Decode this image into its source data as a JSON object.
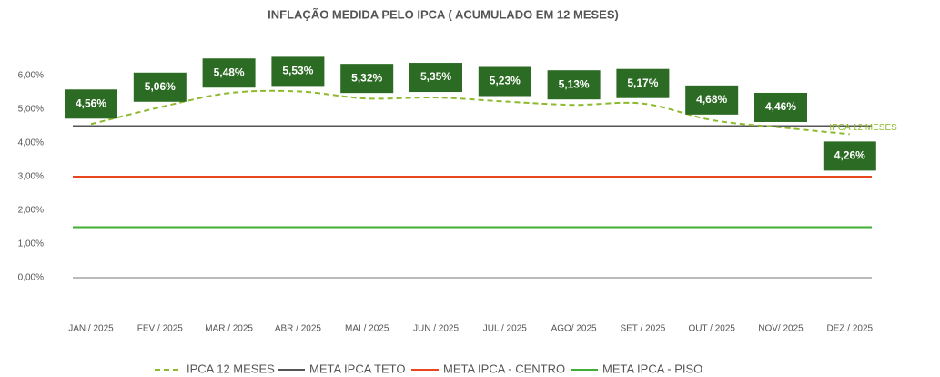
{
  "chart_data": {
    "type": "line",
    "title": "INFLAÇÃO MEDIDA PELO IPCA ( ACUMULADO EM 12 MESES)",
    "categories": [
      "JAN / 2025",
      "FEV / 2025",
      "MAR / 2025",
      "ABR / 2025",
      "MAI / 2025",
      "JUN / 2025",
      "JUL / 2025",
      "AGO/ 2025",
      "SET / 2025",
      "OUT / 2025",
      "NOV/ 2025",
      "DEZ / 2025"
    ],
    "series": [
      {
        "name": "IPCA 12 MESES",
        "color": "#8dba2c",
        "dashed": true,
        "values": [
          4.56,
          5.06,
          5.48,
          5.53,
          5.32,
          5.35,
          5.23,
          5.13,
          5.17,
          4.68,
          4.46,
          4.26
        ],
        "value_labels": [
          "4,56%",
          "5,06%",
          "5,48%",
          "5,53%",
          "5,32%",
          "5,35%",
          "5,23%",
          "5,13%",
          "5,17%",
          "4,68%",
          "4,46%",
          "4,26%"
        ]
      },
      {
        "name": "META IPCA TETO",
        "color": "#555555",
        "values": [
          4.5,
          4.5,
          4.5,
          4.5,
          4.5,
          4.5,
          4.5,
          4.5,
          4.5,
          4.5,
          4.5,
          4.5
        ]
      },
      {
        "name": "META IPCA - CENTRO",
        "color": "#e8461e",
        "values": [
          3,
          3,
          3,
          3,
          3,
          3,
          3,
          3,
          3,
          3,
          3,
          3
        ]
      },
      {
        "name": "META IPCA - PISO",
        "color": "#3fae35",
        "values": [
          1.5,
          1.5,
          1.5,
          1.5,
          1.5,
          1.5,
          1.5,
          1.5,
          1.5,
          1.5,
          1.5,
          1.5
        ]
      }
    ],
    "ylim": [
      0,
      6
    ],
    "yticks": [
      {
        "value": 0,
        "label": "0,00%"
      },
      {
        "value": 1,
        "label": "1,00%"
      },
      {
        "value": 2,
        "label": "2,00%"
      },
      {
        "value": 3,
        "label": "3,00%"
      },
      {
        "value": 4,
        "label": "4,00%"
      },
      {
        "value": 5,
        "label": "5,00%"
      },
      {
        "value": 6,
        "label": "6,00%"
      }
    ],
    "label_color": "#2b6b23"
  }
}
